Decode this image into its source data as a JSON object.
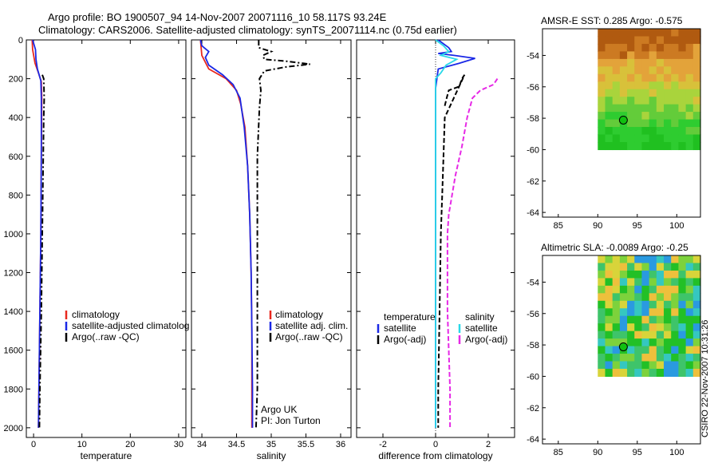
{
  "header": {
    "title_line1": "Argo profile: BO 1900507_94 14-Nov-2007 20071116_10 58.117S 93.24E",
    "title_line2": "Climatology: CARS2006. Satellite-adjusted climatology: synTS_20071114.nc (0.75d earlier)"
  },
  "credit": "CSIRO 22-Nov-2007 10:31:26",
  "colors": {
    "climatology": "#e8281e",
    "satellite": "#1a28e6",
    "argo": "#000000",
    "satellite_salinity": "#29d9e8",
    "argo_salinity_diff": "#e629e6"
  },
  "chart_data": [
    {
      "type": "line",
      "id": "temperature",
      "xlabel": "temperature",
      "ylabel": "",
      "xlim": [
        -1.5,
        31.5
      ],
      "ylim": [
        2050,
        0
      ],
      "ydir": "reversed",
      "xticks": [
        0,
        10,
        20,
        30
      ],
      "yticks": [
        0,
        200,
        400,
        600,
        800,
        1000,
        1200,
        1400,
        1600,
        1800,
        2000
      ],
      "legend": {
        "placement": "lower-right",
        "entries": [
          "climatology",
          "satellite-adjusted climatolog",
          "Argo(..raw -QC)"
        ]
      },
      "series": [
        {
          "name": "climatology",
          "color": "#e8281e",
          "style": "solid",
          "points": [
            [
              -0.3,
              0
            ],
            [
              -0.2,
              50
            ],
            [
              0.3,
              120
            ],
            [
              1.0,
              170
            ],
            [
              1.6,
              215
            ],
            [
              1.7,
              300
            ],
            [
              1.6,
              600
            ],
            [
              1.5,
              1000
            ],
            [
              1.3,
              1400
            ],
            [
              1.1,
              1800
            ],
            [
              1.0,
              2000
            ]
          ]
        },
        {
          "name": "satellite-adjusted climatolog",
          "color": "#1a28e6",
          "style": "solid",
          "points": [
            [
              -0.2,
              0
            ],
            [
              0.4,
              50
            ],
            [
              0.5,
              100
            ],
            [
              0.8,
              150
            ],
            [
              1.5,
              210
            ],
            [
              1.6,
              300
            ],
            [
              1.6,
              600
            ],
            [
              1.5,
              1000
            ],
            [
              1.3,
              1400
            ],
            [
              1.1,
              1800
            ],
            [
              1.0,
              2000
            ]
          ]
        },
        {
          "name": "Argo(..raw -QC)",
          "color": "#000000",
          "style": "dashdot",
          "points": [
            [
              1.8,
              180
            ],
            [
              2.1,
              200
            ],
            [
              2.2,
              300
            ],
            [
              2.1,
              400
            ],
            [
              2.0,
              600
            ],
            [
              1.9,
              800
            ],
            [
              1.8,
              1000
            ],
            [
              1.6,
              1400
            ],
            [
              1.3,
              1800
            ],
            [
              1.2,
              2000
            ]
          ]
        }
      ]
    },
    {
      "type": "line",
      "id": "salinity",
      "xlabel": "salinity",
      "ylabel": "",
      "xlim": [
        33.85,
        36.15
      ],
      "ylim": [
        2050,
        0
      ],
      "ydir": "reversed",
      "xticks": [
        34,
        34.5,
        35,
        35.5,
        36
      ],
      "tick_labels": [
        "34",
        "34.5",
        "35",
        "35.5",
        "36"
      ],
      "legend": {
        "placement": "lower-right",
        "entries": [
          "climatology",
          "satellite adj. clim.",
          "Argo(..raw -QC)"
        ]
      },
      "annotations": [
        "Argo UK",
        "PI: Jon Turton"
      ],
      "series": [
        {
          "name": "climatology",
          "color": "#e8281e",
          "style": "solid",
          "points": [
            [
              33.98,
              0
            ],
            [
              34.0,
              80
            ],
            [
              34.1,
              150
            ],
            [
              34.35,
              200
            ],
            [
              34.5,
              260
            ],
            [
              34.56,
              330
            ],
            [
              34.62,
              450
            ],
            [
              34.66,
              650
            ],
            [
              34.69,
              900
            ],
            [
              34.71,
              1200
            ],
            [
              34.72,
              1500
            ],
            [
              34.72,
              1800
            ],
            [
              34.72,
              2000
            ]
          ]
        },
        {
          "name": "satellite adj. clim.",
          "color": "#1a28e6",
          "style": "solid",
          "points": [
            [
              33.98,
              0
            ],
            [
              34.0,
              30
            ],
            [
              34.1,
              60
            ],
            [
              34.05,
              90
            ],
            [
              34.1,
              130
            ],
            [
              34.3,
              180
            ],
            [
              34.45,
              230
            ],
            [
              34.55,
              300
            ],
            [
              34.61,
              450
            ],
            [
              34.66,
              650
            ],
            [
              34.69,
              900
            ],
            [
              34.71,
              1200
            ],
            [
              34.72,
              1500
            ],
            [
              34.73,
              1800
            ],
            [
              34.73,
              2000
            ]
          ]
        },
        {
          "name": "Argo(..raw -QC)",
          "color": "#000000",
          "style": "dashdot",
          "points": [
            [
              34.82,
              0
            ],
            [
              34.82,
              40
            ],
            [
              35.0,
              60
            ],
            [
              34.88,
              80
            ],
            [
              34.9,
              100
            ],
            [
              35.22,
              110
            ],
            [
              35.56,
              125
            ],
            [
              35.2,
              140
            ],
            [
              34.9,
              160
            ],
            [
              34.83,
              200
            ],
            [
              34.85,
              260
            ],
            [
              34.83,
              350
            ],
            [
              34.8,
              600
            ],
            [
              34.8,
              1000
            ],
            [
              34.8,
              1500
            ],
            [
              34.8,
              1800
            ],
            [
              34.78,
              2000
            ]
          ]
        }
      ]
    },
    {
      "type": "line",
      "id": "difference",
      "xlabel": "difference from climatology",
      "ylabel": "",
      "xlim": [
        -3.0,
        3.0
      ],
      "ylim": [
        2050,
        0
      ],
      "ydir": "reversed",
      "xticks": [
        -2,
        0,
        2
      ],
      "legend": {
        "placement": "lower-center",
        "headings": [
          "temperature",
          "salinity"
        ],
        "entries": [
          "satellite",
          "Argo(-adj)",
          "satellite",
          "Argo(-adj)"
        ]
      },
      "series": [
        {
          "name": "temperature satellite",
          "color": "#1a28e6",
          "style": "solid",
          "points": [
            [
              0.1,
              0
            ],
            [
              0.5,
              40
            ],
            [
              0.6,
              60
            ],
            [
              0.1,
              70
            ],
            [
              0.7,
              80
            ],
            [
              1.5,
              95
            ],
            [
              0.9,
              120
            ],
            [
              0.1,
              150
            ],
            [
              0.0,
              250
            ],
            [
              0.0,
              1000
            ],
            [
              0.0,
              2000
            ]
          ]
        },
        {
          "name": "salinity satellite",
          "color": "#29d9e8",
          "style": "solid",
          "points": [
            [
              0.0,
              0
            ],
            [
              0.3,
              30
            ],
            [
              0.5,
              60
            ],
            [
              0.2,
              80
            ],
            [
              0.8,
              100
            ],
            [
              0.4,
              130
            ],
            [
              0.2,
              170
            ],
            [
              0.0,
              200
            ],
            [
              0.0,
              400
            ],
            [
              0.0,
              1000
            ],
            [
              0.0,
              1500
            ],
            [
              0.0,
              2000
            ]
          ]
        },
        {
          "name": "temperature Argo(-adj)",
          "color": "#000000",
          "style": "dashed",
          "points": [
            [
              0.35,
              340
            ],
            [
              0.42,
              300
            ],
            [
              0.5,
              260
            ],
            [
              0.9,
              240
            ],
            [
              1.0,
              200
            ],
            [
              1.1,
              180
            ],
            [
              0.35,
              400
            ],
            [
              0.3,
              600
            ],
            [
              0.25,
              800
            ],
            [
              0.2,
              1000
            ],
            [
              0.15,
              1400
            ],
            [
              0.1,
              1800
            ],
            [
              0.1,
              2000
            ]
          ]
        },
        {
          "name": "salinity Argo(-adj)",
          "color": "#e629e6",
          "style": "dashed",
          "points": [
            [
              2.35,
              200
            ],
            [
              2.2,
              230
            ],
            [
              1.7,
              260
            ],
            [
              1.4,
              300
            ],
            [
              1.2,
              400
            ],
            [
              1.0,
              550
            ],
            [
              0.75,
              700
            ],
            [
              0.5,
              900
            ],
            [
              0.45,
              1000
            ],
            [
              0.45,
              1400
            ],
            [
              0.55,
              1800
            ],
            [
              0.55,
              2000
            ]
          ]
        }
      ]
    },
    {
      "type": "heatmap",
      "id": "sst_map",
      "title": "AMSR-E SST: 0.285 Argo: -0.575",
      "xlim": [
        83,
        103
      ],
      "ylim": [
        -64.3,
        -52.3
      ],
      "xticks": [
        85,
        90,
        95,
        100
      ],
      "yticks": [
        -54,
        -56,
        -58,
        -60,
        -62,
        -64
      ],
      "data_extent": {
        "lon": [
          90,
          103
        ],
        "lat": [
          -60,
          -52.3
        ]
      },
      "profile_location": {
        "lon": 93.24,
        "lat": -58.12
      }
    },
    {
      "type": "heatmap",
      "id": "sla_map",
      "title": "Altimetric SLA: -0.0089 Argo: -0.25",
      "xlim": [
        83,
        103
      ],
      "ylim": [
        -64.3,
        -52.3
      ],
      "xticks": [
        85,
        90,
        95,
        100
      ],
      "yticks": [
        -54,
        -56,
        -58,
        -60,
        -62,
        -64
      ],
      "data_extent": {
        "lon": [
          90,
          103
        ],
        "lat": [
          -60,
          -52.3
        ]
      },
      "profile_location": {
        "lon": 93.24,
        "lat": -58.12
      }
    }
  ]
}
